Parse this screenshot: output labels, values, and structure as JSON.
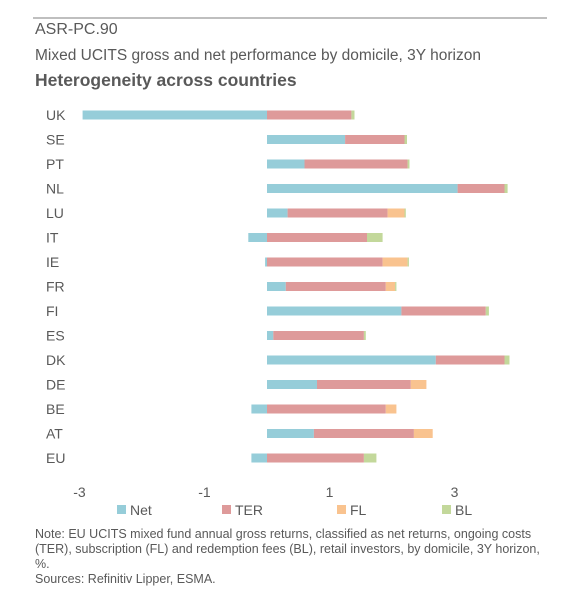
{
  "header": {
    "code": "ASR-PC.90",
    "subtitle": "Mixed UCITS gross and net performance by domicile, 3Y horizon",
    "heading": "Heterogeneity across countries"
  },
  "note": {
    "text": "Note: EU UCITS mixed fund annual gross returns, classified as net returns, ongoing costs (TER), subscription (FL) and redemption fees (BL), retail investors, by domicile, 3Y horizon, %.",
    "sources": "Sources: Refinitiv Lipper, ESMA."
  },
  "chart_data": {
    "type": "bar",
    "orientation": "horizontal",
    "stacked": true,
    "categories": [
      "UK",
      "SE",
      "PT",
      "NL",
      "LU",
      "IT",
      "IE",
      "FR",
      "FI",
      "ES",
      "DK",
      "DE",
      "BE",
      "AT",
      "EU"
    ],
    "series": [
      {
        "name": "Net",
        "color": "#96CDD9",
        "values": [
          -2.95,
          1.25,
          0.6,
          3.05,
          0.33,
          -0.3,
          -0.03,
          0.3,
          2.15,
          0.1,
          2.7,
          0.8,
          -0.25,
          0.75,
          -0.25
        ]
      },
      {
        "name": "TER",
        "color": "#DE9A9A",
        "values": [
          1.35,
          0.95,
          1.65,
          0.75,
          1.6,
          1.6,
          1.85,
          1.6,
          1.35,
          1.45,
          1.1,
          1.5,
          1.9,
          1.6,
          1.55
        ]
      },
      {
        "name": "FL",
        "color": "#F9C38F",
        "values": [
          0.0,
          0.0,
          0.0,
          0.0,
          0.27,
          0.0,
          0.4,
          0.15,
          0.0,
          0.0,
          0.0,
          0.25,
          0.17,
          0.3,
          0.0
        ]
      },
      {
        "name": "BL",
        "color": "#C3D89B",
        "values": [
          0.05,
          0.04,
          0.03,
          0.05,
          0.02,
          0.25,
          0.02,
          0.02,
          0.05,
          0.03,
          0.08,
          0.0,
          0.0,
          0.0,
          0.2
        ]
      }
    ],
    "x_ticks": [
      -3,
      -1,
      1,
      3
    ],
    "xlim": [
      -3,
      3.8
    ],
    "legend_position": "bottom",
    "grid": false
  }
}
